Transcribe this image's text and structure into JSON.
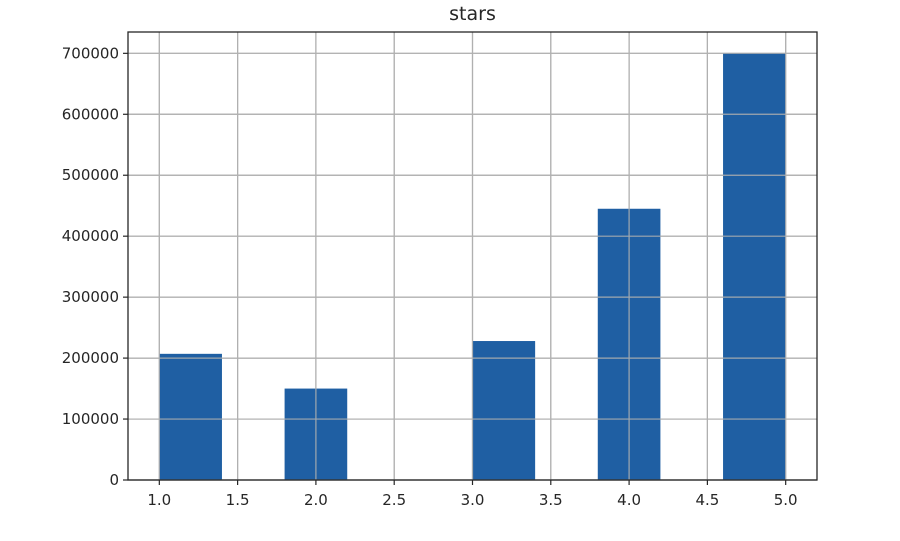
{
  "chart_data": {
    "type": "bar",
    "histogram": true,
    "title": "stars",
    "xlabel": "",
    "ylabel": "",
    "bins": [
      {
        "x0": 1.0,
        "x1": 1.4,
        "value": 207000
      },
      {
        "x0": 1.4,
        "x1": 1.8,
        "value": 0
      },
      {
        "x0": 1.8,
        "x1": 2.2,
        "value": 150000
      },
      {
        "x0": 2.2,
        "x1": 2.6,
        "value": 0
      },
      {
        "x0": 2.6,
        "x1": 3.0,
        "value": 0
      },
      {
        "x0": 3.0,
        "x1": 3.4,
        "value": 228000
      },
      {
        "x0": 3.4,
        "x1": 3.8,
        "value": 0
      },
      {
        "x0": 3.8,
        "x1": 4.2,
        "value": 445000
      },
      {
        "x0": 4.2,
        "x1": 4.6,
        "value": 0
      },
      {
        "x0": 4.6,
        "x1": 5.0,
        "value": 700000
      }
    ],
    "xlim": [
      0.8,
      5.2
    ],
    "ylim": [
      0,
      735000
    ],
    "xticks": [
      1.0,
      1.5,
      2.0,
      2.5,
      3.0,
      3.5,
      4.0,
      4.5,
      5.0
    ],
    "xtick_labels": [
      "1.0",
      "1.5",
      "2.0",
      "2.5",
      "3.0",
      "3.5",
      "4.0",
      "4.5",
      "5.0"
    ],
    "yticks": [
      0,
      100000,
      200000,
      300000,
      400000,
      500000,
      600000,
      700000
    ],
    "ytick_labels": [
      "0",
      "100000",
      "200000",
      "300000",
      "400000",
      "500000",
      "600000",
      "700000"
    ],
    "grid": true,
    "bar_color": "#1f5fa3",
    "grid_color": "#b0b0b0"
  }
}
